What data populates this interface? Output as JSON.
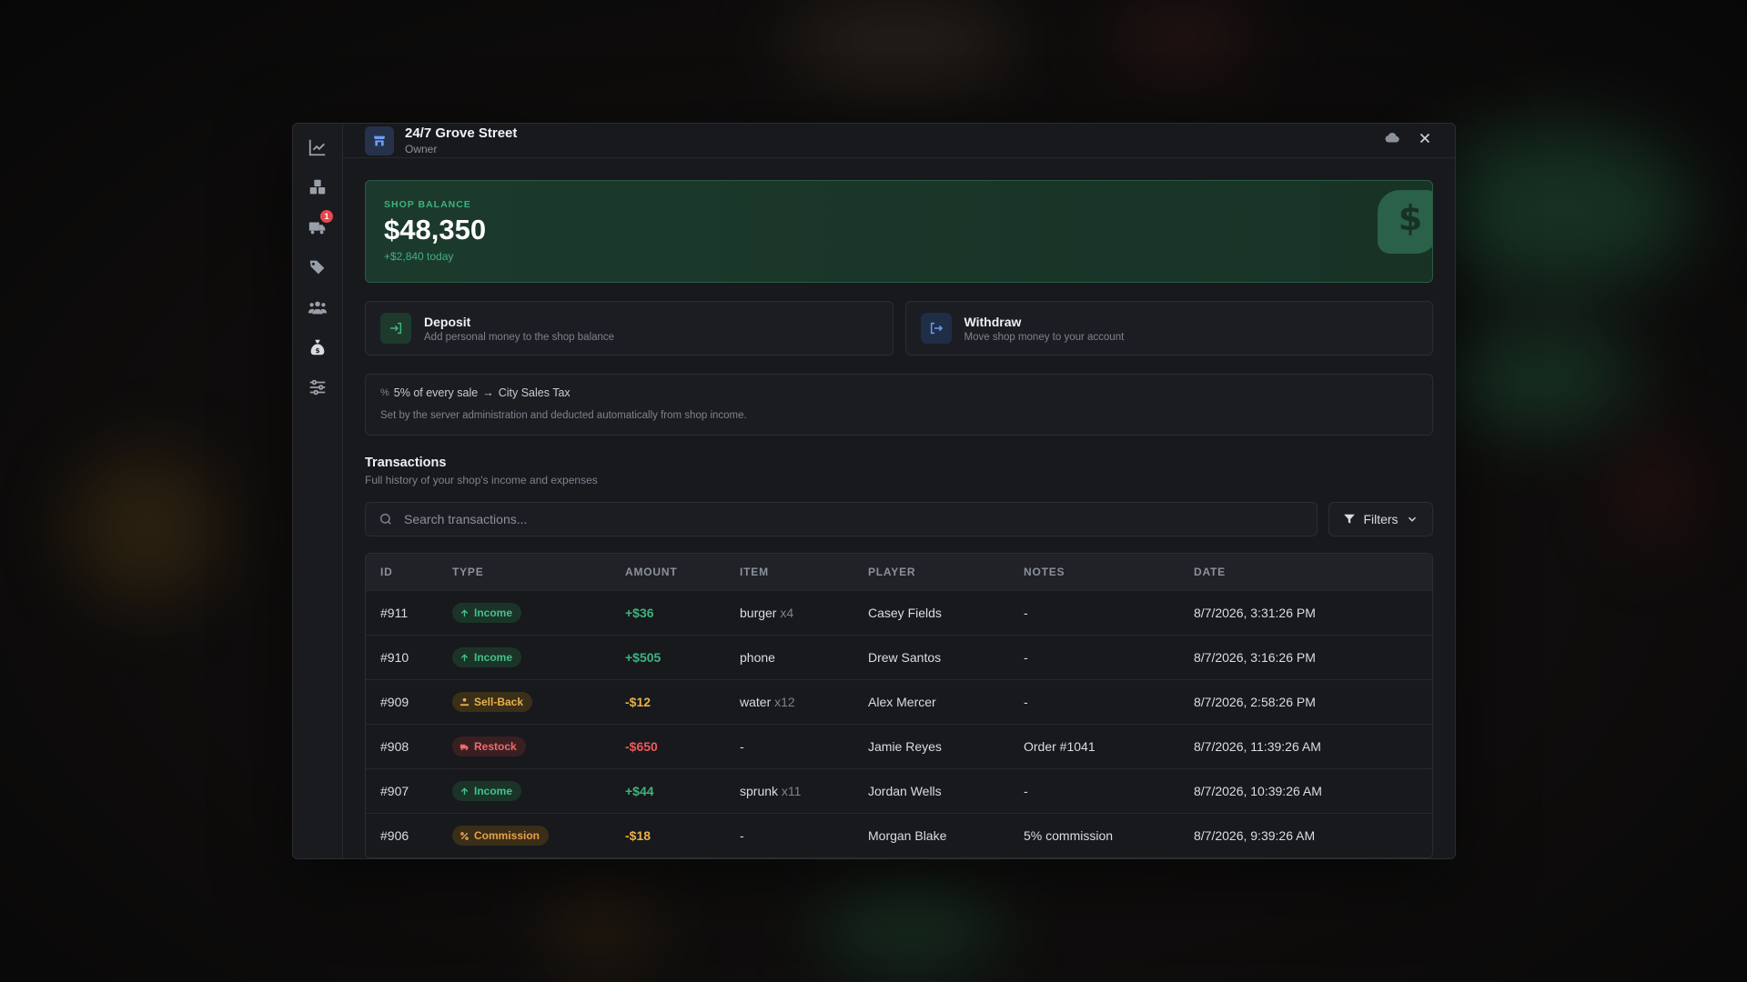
{
  "header": {
    "shop_name": "24/7 Grove Street",
    "role": "Owner"
  },
  "sidebar": {
    "items": [
      {
        "name": "analytics",
        "active": false
      },
      {
        "name": "inventory",
        "active": false
      },
      {
        "name": "deliveries",
        "active": false,
        "badge": "1"
      },
      {
        "name": "pricing",
        "active": false
      },
      {
        "name": "employees",
        "active": false
      },
      {
        "name": "finances",
        "active": true
      },
      {
        "name": "settings",
        "active": false
      }
    ]
  },
  "balance": {
    "label": "SHOP BALANCE",
    "value": "$48,350",
    "delta": "+$2,840 today"
  },
  "actions": {
    "deposit": {
      "title": "Deposit",
      "subtitle": "Add personal money to the shop balance"
    },
    "withdraw": {
      "title": "Withdraw",
      "subtitle": "Move shop money to your account"
    }
  },
  "tax": {
    "icon": "%",
    "rate_text": "5% of every sale",
    "arrow": "→",
    "target": "City Sales Tax",
    "note": "Set by the server administration and deducted automatically from shop income."
  },
  "transactions": {
    "title": "Transactions",
    "subtitle": "Full history of your shop's income and expenses",
    "search_placeholder": "Search transactions...",
    "filters_label": "Filters",
    "columns": [
      "ID",
      "TYPE",
      "AMOUNT",
      "ITEM",
      "PLAYER",
      "NOTES",
      "DATE"
    ],
    "rows": [
      {
        "id": "#911",
        "type": "Income",
        "kind": "income",
        "amount": "+$36",
        "item": "burger",
        "qty": "x4",
        "player": "Casey Fields",
        "notes": "-",
        "date": "8/7/2026, 3:31:26 PM"
      },
      {
        "id": "#910",
        "type": "Income",
        "kind": "income",
        "amount": "+$505",
        "item": "phone",
        "qty": "",
        "player": "Drew Santos",
        "notes": "-",
        "date": "8/7/2026, 3:16:26 PM"
      },
      {
        "id": "#909",
        "type": "Sell-Back",
        "kind": "sell",
        "amount": "-$12",
        "item": "water",
        "qty": "x12",
        "player": "Alex Mercer",
        "notes": "-",
        "date": "8/7/2026, 2:58:26 PM"
      },
      {
        "id": "#908",
        "type": "Restock",
        "kind": "restock",
        "amount": "-$650",
        "item": "-",
        "qty": "",
        "player": "Jamie Reyes",
        "notes": "Order #1041",
        "date": "8/7/2026, 11:39:26 AM"
      },
      {
        "id": "#907",
        "type": "Income",
        "kind": "income",
        "amount": "+$44",
        "item": "sprunk",
        "qty": "x11",
        "player": "Jordan Wells",
        "notes": "-",
        "date": "8/7/2026, 10:39:26 AM"
      },
      {
        "id": "#906",
        "type": "Commission",
        "kind": "comm",
        "amount": "-$18",
        "item": "-",
        "qty": "",
        "player": "Morgan Blake",
        "notes": "5% commission",
        "date": "8/7/2026, 9:39:26 AM"
      }
    ]
  }
}
